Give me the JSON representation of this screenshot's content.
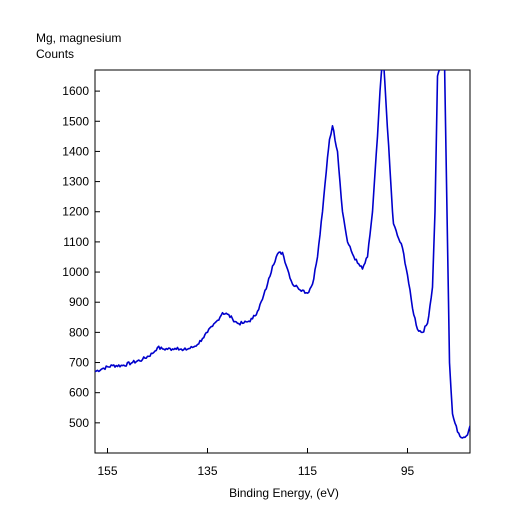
{
  "chart_data": {
    "type": "line",
    "title": "Mg, magnesium",
    "ylabel": "Counts",
    "xlabel": "Binding Energy, (eV)",
    "x_reversed": true,
    "xlim": [
      157.5,
      82.5
    ],
    "ylim": [
      400,
      1670
    ],
    "xticks": [
      155,
      135,
      115,
      95
    ],
    "yticks": [
      500,
      600,
      700,
      800,
      900,
      1000,
      1100,
      1200,
      1300,
      1400,
      1500,
      1600
    ],
    "grid": false,
    "series_color": "#0000cc",
    "series": [
      {
        "x": [
          157.5,
          156,
          154,
          152,
          150,
          148,
          146,
          145,
          144,
          142,
          141,
          140,
          138,
          137,
          136,
          135,
          134,
          133,
          132,
          131,
          130,
          129,
          128,
          127,
          126,
          125,
          124,
          123,
          122,
          121,
          120,
          119,
          118,
          117,
          116,
          115,
          114,
          113,
          112,
          111,
          110.6,
          110,
          109,
          108,
          107,
          106,
          105,
          104,
          103,
          102,
          101,
          100.5,
          100,
          99.8,
          98,
          97.8,
          97,
          96,
          95,
          94,
          93,
          92,
          91,
          90,
          89.5,
          89,
          88,
          87.6,
          87,
          86.6,
          86,
          85,
          84,
          83,
          82.5
        ],
        "y": [
          670,
          680,
          690,
          690,
          700,
          710,
          730,
          750,
          745,
          745,
          750,
          740,
          750,
          760,
          780,
          800,
          820,
          840,
          865,
          860,
          845,
          830,
          830,
          835,
          845,
          870,
          910,
          960,
          1020,
          1060,
          1065,
          1010,
          960,
          950,
          940,
          930,
          960,
          1050,
          1200,
          1380,
          1440,
          1485,
          1400,
          1200,
          1100,
          1060,
          1030,
          1010,
          1050,
          1200,
          1450,
          1600,
          1700,
          1700,
          1200,
          1160,
          1120,
          1080,
          990,
          880,
          810,
          800,
          830,
          950,
          1200,
          1650,
          1700,
          1700,
          1100,
          700,
          530,
          470,
          450,
          460,
          490
        ]
      }
    ]
  }
}
